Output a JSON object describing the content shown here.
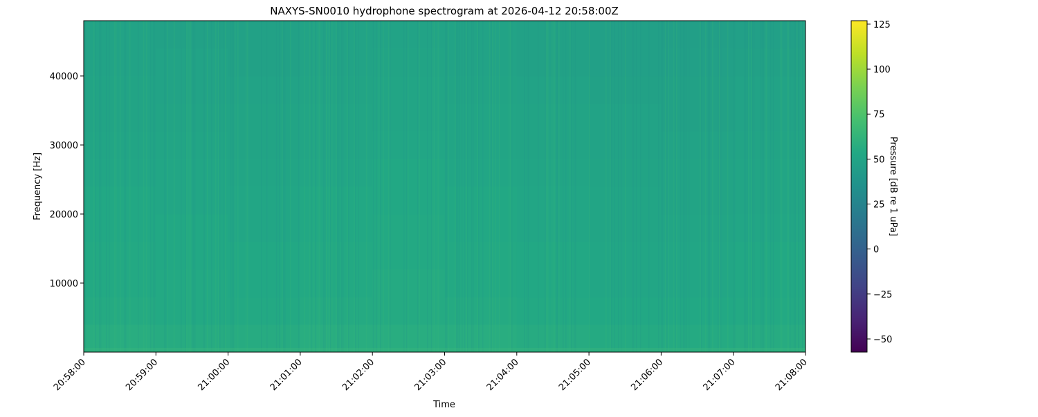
{
  "chart_data": {
    "type": "heatmap",
    "title": "NAXYS-SN0010 hydrophone spectrogram at 2026-04-12 20:58:00Z",
    "xlabel": "Time",
    "ylabel": "Frequency [Hz]",
    "colorbar_label": "Pressure [dB re 1 uPa]",
    "colormap": "viridis",
    "color_range": [
      -57.3,
      126.9
    ],
    "colorbar_ticks": [
      125,
      100,
      75,
      50,
      25,
      0,
      -25,
      -50
    ],
    "colorbar_tick_labels": [
      "125",
      "100",
      "75",
      "50",
      "25",
      "0",
      "−25",
      "−50"
    ],
    "x_range": [
      "20:58:00",
      "21:08:00"
    ],
    "x_ticks": [
      "20:58:00",
      "20:59:00",
      "21:00:00",
      "21:01:00",
      "21:02:00",
      "21:03:00",
      "21:04:00",
      "21:05:00",
      "21:06:00",
      "21:07:00",
      "21:08:00"
    ],
    "ylim": [
      0,
      48000
    ],
    "y_ticks": [
      10000,
      20000,
      30000,
      40000
    ],
    "y_tick_labels": [
      "10000",
      "20000",
      "30000",
      "40000"
    ],
    "grid": false,
    "time_bins": [
      "20:58",
      "20:59",
      "21:00",
      "21:01",
      "21:02",
      "21:03",
      "21:04",
      "21:05",
      "21:06",
      "21:07"
    ],
    "freq_bins_hz": [
      0,
      4000,
      8000,
      12000,
      16000,
      20000,
      24000,
      28000,
      32000,
      36000,
      40000,
      44000
    ],
    "values_db": [
      [
        57,
        56,
        56,
        57,
        57,
        57,
        56,
        55,
        55,
        56
      ],
      [
        55,
        54,
        54,
        55,
        55,
        55,
        54,
        53,
        53,
        54
      ],
      [
        54,
        54,
        53,
        54,
        55,
        54,
        53,
        52,
        52,
        53
      ],
      [
        54,
        53,
        53,
        54,
        54,
        54,
        53,
        52,
        52,
        53
      ],
      [
        53,
        53,
        52,
        53,
        54,
        53,
        52,
        51,
        51,
        52
      ],
      [
        53,
        52,
        52,
        53,
        53,
        53,
        52,
        51,
        50,
        51
      ],
      [
        52,
        52,
        51,
        52,
        53,
        52,
        51,
        50,
        50,
        51
      ],
      [
        51,
        51,
        50,
        51,
        52,
        51,
        50,
        49,
        49,
        50
      ],
      [
        50,
        50,
        50,
        51,
        51,
        51,
        50,
        49,
        48,
        49
      ],
      [
        50,
        49,
        49,
        50,
        51,
        50,
        49,
        48,
        48,
        49
      ],
      [
        49,
        49,
        48,
        49,
        50,
        49,
        48,
        47,
        47,
        48
      ],
      [
        49,
        48,
        48,
        49,
        49,
        49,
        48,
        47,
        46,
        47
      ]
    ]
  }
}
